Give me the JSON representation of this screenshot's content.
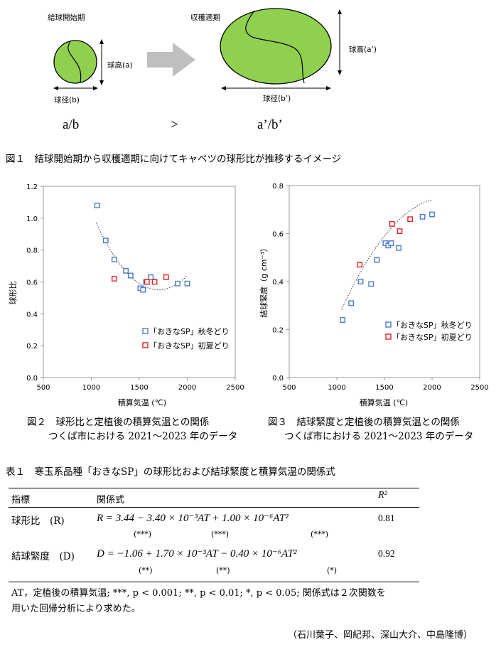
{
  "fig1": {
    "stage1": "結球開始期",
    "stage2": "収穫適期",
    "height_a": "球高(a)",
    "width_b": "球径(b)",
    "height_a2": "球高(a’)",
    "width_b2": "球径(b’)",
    "ratio1": "a/b",
    "gt": ">",
    "ratio2": "a’/b’",
    "caption": "図１　結球開始期から収穫適期に向けてキャベツの球形比が推移するイメージ",
    "ball_color": "#8fd14f"
  },
  "chart_data": [
    {
      "type": "scatter",
      "id": "fig2",
      "xlabel": "積算気温 (℃)",
      "ylabel": "球形比",
      "xlim": [
        500,
        2500
      ],
      "ylim": [
        0.0,
        1.2
      ],
      "xticks": [
        "500",
        "1000",
        "1500",
        "2000",
        "2500"
      ],
      "yticks": [
        "0.0",
        "0.2",
        "0.4",
        "0.6",
        "0.8",
        "1.0",
        "1.2"
      ],
      "series": [
        {
          "name": "「おきなSP」秋冬どり",
          "color": "#4a7ac8",
          "x": [
            1060,
            1150,
            1240,
            1360,
            1410,
            1510,
            1540,
            1570,
            1620,
            1900,
            2000
          ],
          "y": [
            1.08,
            0.86,
            0.74,
            0.67,
            0.64,
            0.56,
            0.55,
            0.6,
            0.63,
            0.59,
            0.59
          ]
        },
        {
          "name": "「おきなSP」初夏どり",
          "color": "#e02020",
          "x": [
            1240,
            1580,
            1660,
            1780
          ],
          "y": [
            0.62,
            0.6,
            0.6,
            0.63
          ]
        }
      ],
      "fit": {
        "kind": "quadratic",
        "coeffs": [
          3.44,
          -0.0034,
          1e-06
        ],
        "x_range": [
          1050,
          2000
        ]
      },
      "caption_line1": "図２　球形比と定植後の積算気温との関係",
      "caption_line2": "つくば市における 2021～2023 年のデータ"
    },
    {
      "type": "scatter",
      "id": "fig3",
      "xlabel": "積算気温 (℃)",
      "ylabel": "結球緊度（g cm⁻³）",
      "xlim": [
        500,
        2500
      ],
      "ylim": [
        0.0,
        0.8
      ],
      "xticks": [
        "500",
        "1000",
        "1500",
        "2000",
        "2500"
      ],
      "yticks": [
        "0.0",
        "0.2",
        "0.4",
        "0.6",
        "0.8"
      ],
      "series": [
        {
          "name": "「おきなSP」秋冬どり",
          "color": "#4a7ac8",
          "x": [
            1060,
            1150,
            1250,
            1360,
            1420,
            1510,
            1540,
            1570,
            1650,
            1900,
            2000
          ],
          "y": [
            0.24,
            0.31,
            0.4,
            0.39,
            0.49,
            0.56,
            0.55,
            0.56,
            0.54,
            0.67,
            0.68
          ]
        },
        {
          "name": "「おきなSP」初夏どり",
          "color": "#e02020",
          "x": [
            1240,
            1580,
            1660,
            1770
          ],
          "y": [
            0.47,
            0.64,
            0.61,
            0.66
          ]
        }
      ],
      "fit": {
        "kind": "quadratic",
        "coeffs": [
          -1.06,
          0.0017,
          -4e-07
        ],
        "x_range": [
          1050,
          2000
        ]
      },
      "caption_line1": "図３　結球緊度と定植後の積算気温との関係",
      "caption_line2": "つくば市における 2021～2023 年のデータ"
    }
  ],
  "table": {
    "title": "表１　寒玉系品種「おきなSP」の球形比および結球緊度と積算気温の関係式",
    "headers": {
      "indicator": "指標",
      "formula": "関係式",
      "r2": "R²"
    },
    "rows": [
      {
        "indicator": "球形比　(R)",
        "formula": "R  =  3.44  −  3.40 × 10⁻³AT  +  1.00 × 10⁻⁶AT²",
        "r2": "0.81",
        "sig": [
          "(***)",
          "(***)",
          "(***)"
        ]
      },
      {
        "indicator": "結球緊度　(D)",
        "formula": "D  =  −1.06  +  1.70 × 10⁻³AT  −  0.40 × 10⁻⁶AT²",
        "r2": "0.92",
        "sig": [
          "(**)",
          "(**)",
          "(*)"
        ]
      }
    ],
    "note_line1": "AT，定植後の積算気温; ***, p < 0.001; **, p < 0.01; *, p < 0.05;  関係式は２次関数を",
    "note_line2": "用いた回帰分析により求めた。"
  },
  "authors": "（石川葉子、岡紀邦、深山大介、中島隆博）"
}
